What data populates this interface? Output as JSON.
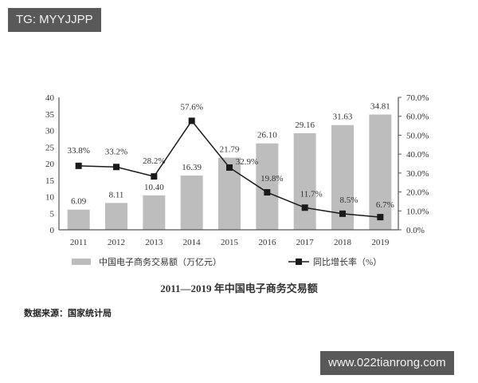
{
  "watermarks": {
    "top": "TG: MYYJJPP",
    "bottom": "www.022tianrong.com"
  },
  "source_note": "数据来源：国家统计局",
  "chart_data": {
    "type": "bar",
    "title": "2011—2019 年中国电子商务交易额",
    "categories": [
      "2011",
      "2012",
      "2013",
      "2014",
      "2015",
      "2016",
      "2017",
      "2018",
      "2019"
    ],
    "series": [
      {
        "name": "中国电子商务交易额（万亿元）",
        "type": "bar",
        "axis": "left",
        "color": "#bdbdbd",
        "values": [
          6.09,
          8.11,
          10.4,
          16.39,
          21.79,
          26.1,
          29.16,
          31.63,
          34.81
        ],
        "labels": [
          "6.09",
          "8.11",
          "10.40",
          "16.39",
          "21.79",
          "26.10",
          "29.16",
          "31.63",
          "34.81"
        ]
      },
      {
        "name": "同比增长率（%）",
        "type": "line",
        "axis": "right",
        "color": "#1a1a1a",
        "values": [
          33.8,
          33.2,
          28.2,
          57.6,
          32.9,
          19.8,
          11.7,
          8.5,
          6.7
        ],
        "labels": [
          "33.8%",
          "33.2%",
          "28.2%",
          "57.6%",
          "32.9%",
          "19.8%",
          "11.7%",
          "8.5%",
          "6.7%"
        ]
      }
    ],
    "left_axis": {
      "ylim": [
        0,
        40
      ],
      "ticks": [
        "0",
        "5",
        "10",
        "15",
        "20",
        "25",
        "30",
        "35",
        "40"
      ]
    },
    "right_axis": {
      "ylim": [
        0,
        70
      ],
      "ticks": [
        "0.0%",
        "10.0%",
        "20.0%",
        "30.0%",
        "40.0%",
        "50.0%",
        "60.0%",
        "70.0%"
      ]
    },
    "legend_position": "bottom",
    "grid": false
  }
}
